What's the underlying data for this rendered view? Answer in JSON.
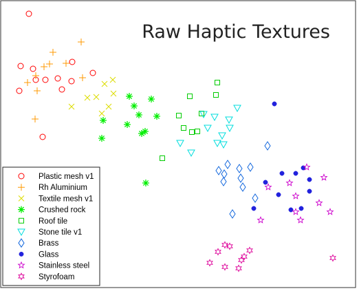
{
  "chart_data": {
    "type": "scatter",
    "title": "Raw Haptic Textures",
    "xlabel": "",
    "ylabel": "",
    "axes_ticks": false,
    "grid": false,
    "legend_position": "bottom-left",
    "series": [
      {
        "name": "Plastic mesh v1",
        "color": "#ff0000",
        "marker": "circle-open",
        "points": [
          [
            42,
            20
          ],
          [
            30,
            96
          ],
          [
            48,
            100
          ],
          [
            105,
            90
          ],
          [
            135,
            106
          ],
          [
            66,
            116
          ],
          [
            84,
            114
          ],
          [
            52,
            116
          ],
          [
            104,
            118
          ],
          [
            28,
            132
          ],
          [
            90,
            130
          ],
          [
            62,
            199
          ]
        ]
      },
      {
        "name": "Rh Aluminium",
        "color": "#ff9900",
        "marker": "plus",
        "points": [
          [
            118,
            61
          ],
          [
            77,
            76
          ],
          [
            72,
            93
          ],
          [
            64,
            97
          ],
          [
            96,
            92
          ],
          [
            52,
            110
          ],
          [
            120,
            113
          ],
          [
            40,
            120
          ],
          [
            54,
            132
          ],
          [
            51,
            173
          ]
        ]
      },
      {
        "name": "Textile mesh v1",
        "color": "#dddd00",
        "marker": "x",
        "points": [
          [
            164,
            116
          ],
          [
            152,
            122
          ],
          [
            127,
            142
          ],
          [
            140,
            141
          ],
          [
            165,
            136
          ],
          [
            104,
            155
          ],
          [
            158,
            155
          ],
          [
            148,
            165
          ]
        ]
      },
      {
        "name": "Crushed rock",
        "color": "#00ee00",
        "marker": "asterisk",
        "points": [
          [
            188,
            140
          ],
          [
            220,
            144
          ],
          [
            195,
            154
          ],
          [
            202,
            167
          ],
          [
            228,
            169
          ],
          [
            150,
            175
          ],
          [
            185,
            181
          ],
          [
            211,
            191
          ],
          [
            206,
            194
          ],
          [
            148,
            201
          ],
          [
            212,
            266
          ]
        ]
      },
      {
        "name": "Roof tile",
        "color": "#00cc00",
        "marker": "square-open",
        "points": [
          [
            316,
            120
          ],
          [
            314,
            138
          ],
          [
            276,
            140
          ],
          [
            293,
            165
          ],
          [
            260,
            168
          ],
          [
            267,
            186
          ],
          [
            279,
            192
          ],
          [
            287,
            191
          ],
          [
            236,
            230
          ]
        ]
      },
      {
        "name": "Stone tile v1",
        "color": "#00dddd",
        "marker": "triangle-down-open",
        "points": [
          [
            345,
            157
          ],
          [
            296,
            166
          ],
          [
            312,
            170
          ],
          [
            333,
            174
          ],
          [
            334,
            186
          ],
          [
            302,
            186
          ],
          [
            323,
            197
          ],
          [
            262,
            208
          ],
          [
            278,
            222
          ],
          [
            316,
            208
          ],
          [
            325,
            210
          ]
        ]
      },
      {
        "name": "Brass",
        "color": "#1166dd",
        "marker": "diamond-open",
        "points": [
          [
            389,
            212
          ],
          [
            331,
            239
          ],
          [
            348,
            245
          ],
          [
            364,
            243
          ],
          [
            318,
            248
          ],
          [
            326,
            253
          ],
          [
            350,
            259
          ],
          [
            325,
            264
          ],
          [
            353,
            272
          ],
          [
            371,
            288
          ],
          [
            338,
            311
          ]
        ]
      },
      {
        "name": "Glass",
        "color": "#2222dd",
        "marker": "dot",
        "points": [
          [
            399,
            151
          ],
          [
            441,
            244
          ],
          [
            410,
            252
          ],
          [
            430,
            252
          ],
          [
            386,
            265
          ],
          [
            450,
            261
          ],
          [
            405,
            283
          ],
          [
            450,
            278
          ],
          [
            369,
            303
          ],
          [
            423,
            305
          ],
          [
            438,
            303
          ]
        ]
      },
      {
        "name": "Stainless steel",
        "color": "#cc00cc",
        "marker": "star-5",
        "points": [
          [
            446,
            243
          ],
          [
            471,
            258
          ],
          [
            390,
            272
          ],
          [
            421,
            266
          ],
          [
            430,
            285
          ],
          [
            464,
            295
          ],
          [
            430,
            308
          ],
          [
            437,
            320
          ],
          [
            480,
            308
          ],
          [
            379,
            320
          ]
        ]
      },
      {
        "name": "Styrofoam",
        "color": "#dd0099",
        "marker": "star-6",
        "points": [
          [
            327,
            356
          ],
          [
            334,
            358
          ],
          [
            317,
            366
          ],
          [
            363,
            364
          ],
          [
            355,
            373
          ],
          [
            351,
            378
          ],
          [
            305,
            382
          ],
          [
            327,
            388
          ],
          [
            347,
            390
          ],
          [
            484,
            375
          ]
        ]
      }
    ]
  }
}
